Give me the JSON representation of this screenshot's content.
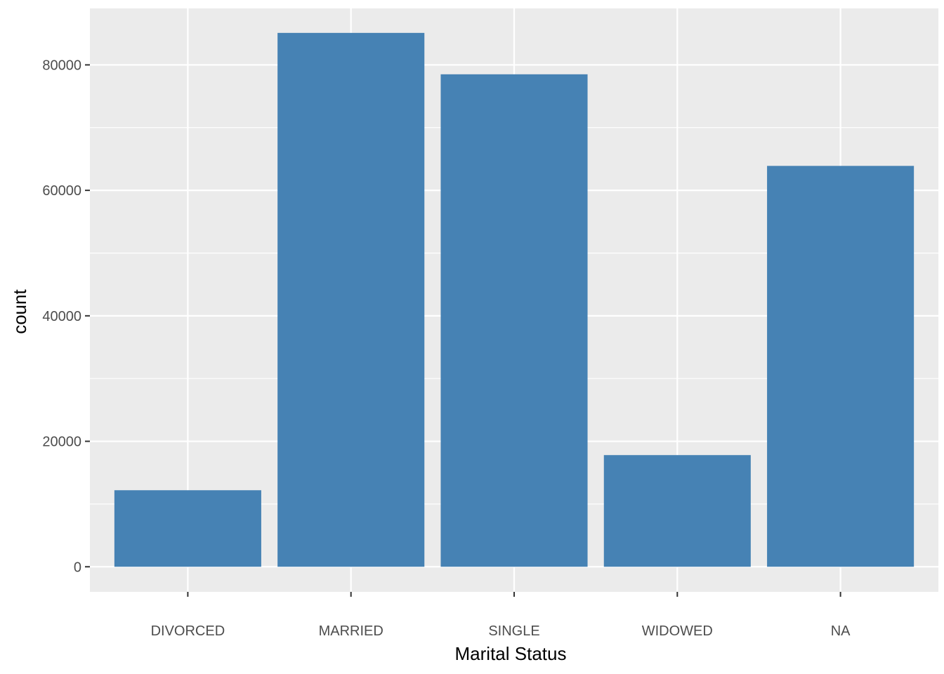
{
  "chart_data": {
    "type": "bar",
    "title": "",
    "xlabel": "Marital Status",
    "ylabel": "count",
    "categories": [
      "DIVORCED",
      "MARRIED",
      "SINGLE",
      "WIDOWED",
      "NA"
    ],
    "values": [
      12200,
      85100,
      78500,
      17800,
      63900
    ],
    "ylim": [
      -4000,
      89000
    ],
    "yticks": [
      0,
      20000,
      40000,
      60000,
      80000
    ],
    "ytick_labels": [
      "0",
      "20000",
      "40000",
      "60000",
      "80000"
    ],
    "grid": true,
    "legend": "none",
    "bar_color": "#4682B4",
    "panel_background": "#EBEBEB",
    "grid_color": "#FFFFFF"
  }
}
